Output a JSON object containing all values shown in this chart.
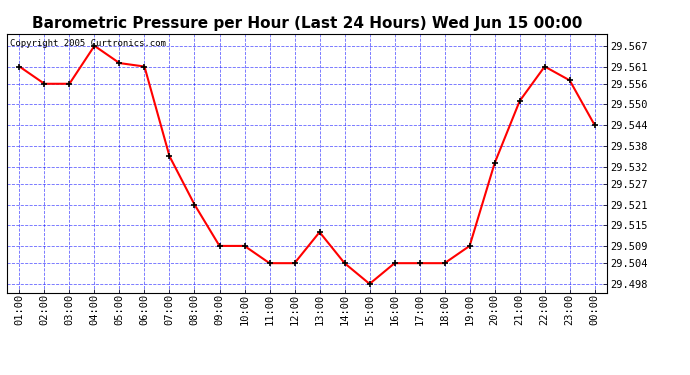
{
  "title": "Barometric Pressure per Hour (Last 24 Hours) Wed Jun 15 00:00",
  "copyright": "Copyright 2005 Curtronics.com",
  "x_labels": [
    "01:00",
    "02:00",
    "03:00",
    "04:00",
    "05:00",
    "06:00",
    "07:00",
    "08:00",
    "09:00",
    "10:00",
    "11:00",
    "12:00",
    "13:00",
    "14:00",
    "15:00",
    "16:00",
    "17:00",
    "18:00",
    "19:00",
    "20:00",
    "21:00",
    "22:00",
    "23:00",
    "00:00"
  ],
  "y_values": [
    29.561,
    29.556,
    29.556,
    29.567,
    29.562,
    29.561,
    29.535,
    29.521,
    29.509,
    29.509,
    29.504,
    29.504,
    29.513,
    29.504,
    29.498,
    29.504,
    29.504,
    29.504,
    29.509,
    29.533,
    29.551,
    29.561,
    29.557,
    29.544
  ],
  "ylim_min": 29.4955,
  "ylim_max": 29.5705,
  "y_ticks": [
    29.498,
    29.504,
    29.509,
    29.515,
    29.521,
    29.527,
    29.532,
    29.538,
    29.544,
    29.55,
    29.556,
    29.561,
    29.567
  ],
  "line_color": "red",
  "marker_color": "black",
  "bg_color": "white",
  "plot_bg_color": "white",
  "grid_color": "blue",
  "title_fontsize": 11,
  "tick_fontsize": 7.5,
  "copyright_fontsize": 6.5
}
